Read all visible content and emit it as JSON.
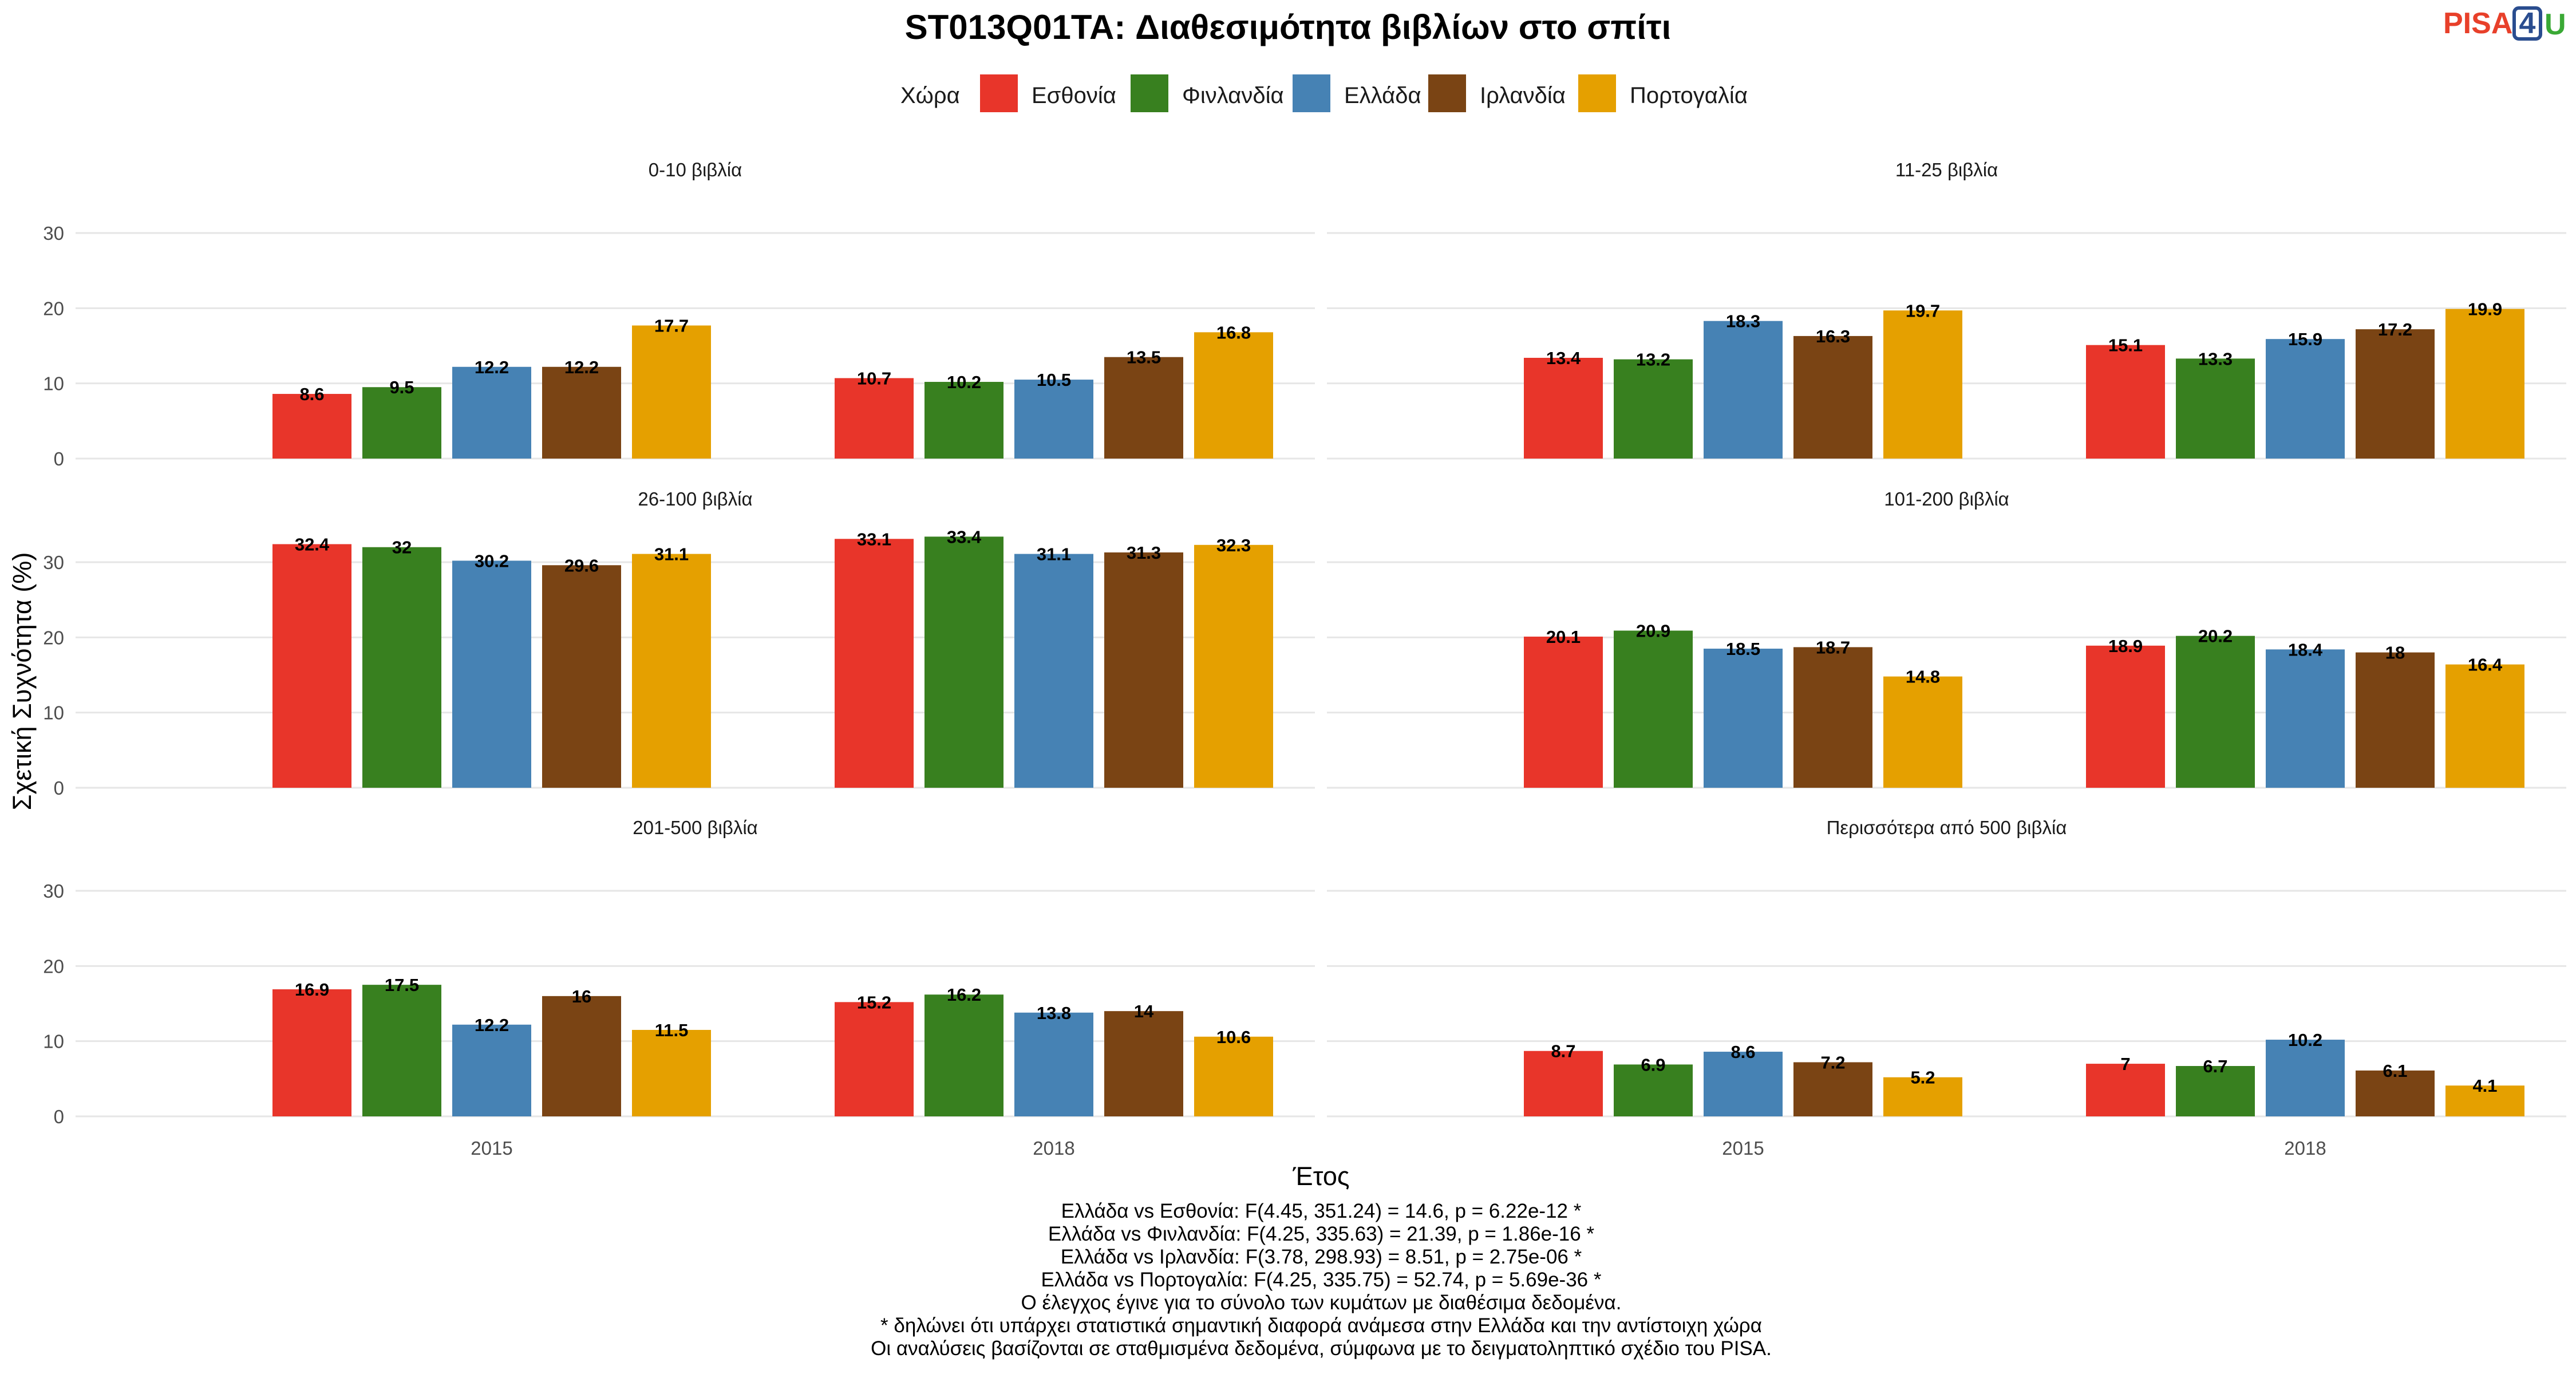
{
  "title": "ST013Q01TA: Διαθεσιμότητα βιβλίων στο σπίτι",
  "logo": {
    "text": "PISA",
    "number": "4",
    "letter": "U",
    "colors": {
      "text": "#e8402a",
      "box": "#2a4d8f",
      "letter": "#3aa935"
    }
  },
  "chart_data": {
    "type": "bar",
    "title": "ST013Q01TA: Διαθεσιμότητα βιβλίων στο σπίτι",
    "xlabel": "Έτος",
    "ylabel": "Σχετική Συχνότητα (%)",
    "ylim": [
      0,
      30
    ],
    "yticks": [
      0,
      10,
      20,
      30
    ],
    "grid": true,
    "legend_title": "Χώρα",
    "legend_position": "top",
    "categories": [
      "2015",
      "2018"
    ],
    "series": [
      {
        "name": "Εσθονία",
        "color": "#e8352a"
      },
      {
        "name": "Φινλανδία",
        "color": "#38801f"
      },
      {
        "name": "Ελλάδα",
        "color": "#4682b4"
      },
      {
        "name": "Ιρλανδία",
        "color": "#7a4414"
      },
      {
        "name": "Πορτογαλία",
        "color": "#e5a000"
      }
    ],
    "panels": [
      {
        "label": "0-10 βιβλία",
        "values": [
          [
            "8.6",
            "9.5",
            "12.2",
            "12.2",
            "17.7"
          ],
          [
            "10.7",
            "10.2",
            "10.5",
            "13.5",
            "16.8"
          ]
        ]
      },
      {
        "label": "11-25 βιβλία",
        "values": [
          [
            "13.4",
            "13.2",
            "18.3",
            "16.3",
            "19.7"
          ],
          [
            "15.1",
            "13.3",
            "15.9",
            "17.2",
            "19.9"
          ]
        ]
      },
      {
        "label": "26-100 βιβλία",
        "values": [
          [
            "32.4",
            "32",
            "30.2",
            "29.6",
            "31.1"
          ],
          [
            "33.1",
            "33.4",
            "31.1",
            "31.3",
            "32.3"
          ]
        ]
      },
      {
        "label": "101-200 βιβλία",
        "values": [
          [
            "20.1",
            "20.9",
            "18.5",
            "18.7",
            "14.8"
          ],
          [
            "18.9",
            "20.2",
            "18.4",
            "18",
            "16.4"
          ]
        ]
      },
      {
        "label": "201-500 βιβλία",
        "values": [
          [
            "16.9",
            "17.5",
            "12.2",
            "16",
            "11.5"
          ],
          [
            "15.2",
            "16.2",
            "13.8",
            "14",
            "10.6"
          ]
        ]
      },
      {
        "label": "Περισσότερα από 500 βιβλία",
        "values": [
          [
            "8.7",
            "6.9",
            "8.6",
            "7.2",
            "5.2"
          ],
          [
            "7",
            "6.7",
            "10.2",
            "6.1",
            "4.1"
          ]
        ]
      }
    ]
  },
  "caption": [
    "Ελλάδα vs Εσθονία: F(4.45, 351.24) = 14.6, p = 6.22e-12 *",
    "Ελλάδα vs Φινλανδία: F(4.25, 335.63) = 21.39, p = 1.86e-16 *",
    "Ελλάδα vs Ιρλανδία: F(3.78, 298.93) = 8.51, p = 2.75e-06 *",
    "Ελλάδα vs Πορτογαλία: F(4.25, 335.75) = 52.74, p = 5.69e-36 *",
    "Ο έλεγχος έγινε για το σύνολο των κυμάτων με διαθέσιμα δεδομένα.",
    "* δηλώνει ότι υπάρχει στατιστικά σημαντική διαφορά ανάμεσα στην Ελλάδα και την αντίστοιχη χώρα",
    "Οι αναλύσεις βασίζονται σε σταθμισμένα δεδομένα, σύμφωνα με το δειγματοληπτικό σχέδιο του PISA."
  ]
}
